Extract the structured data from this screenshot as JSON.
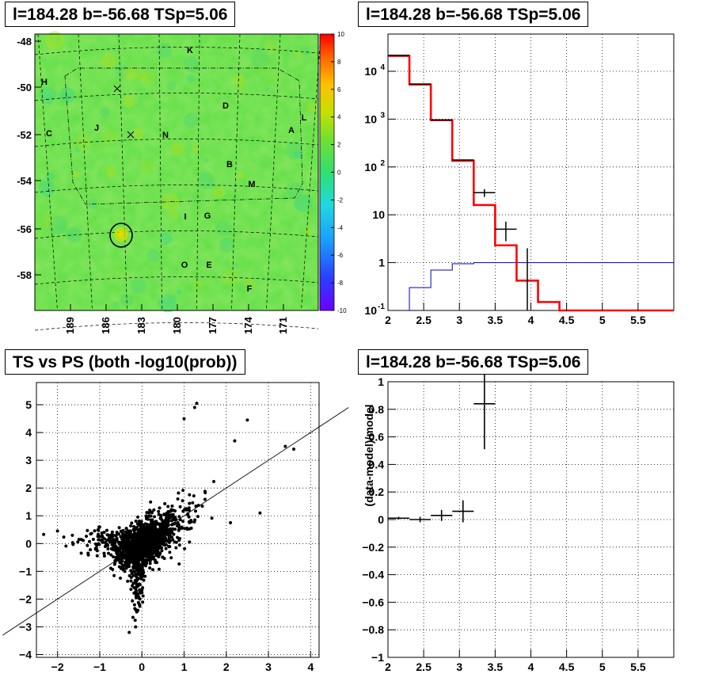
{
  "panels": {
    "tl_title": "l=184.28 b=-56.68 TSp=5.06",
    "tr_title": "l=184.28 b=-56.68 TSp=5.06",
    "bl_title": "TS vs PS (both -log10(prob))",
    "br_title": "l=184.28 b=-56.68 TSp=5.06"
  },
  "chart_data": [
    {
      "id": "ts_map",
      "type": "heatmap",
      "title": "l=184.28 b=-56.68 TSp=5.06",
      "x_ticks": [
        "189",
        "186",
        "183",
        "180",
        "177",
        "174",
        "171"
      ],
      "y_ticks": [
        "-48",
        "-50",
        "-52",
        "-54",
        "-56",
        "-58"
      ],
      "color_scale": {
        "min": -10,
        "max": 10,
        "ticks": [
          "10",
          "8",
          "6",
          "4",
          "2",
          "0",
          "-2",
          "-4",
          "-6",
          "-8",
          "-10"
        ]
      },
      "source_labels": [
        "K",
        "H",
        "D",
        "C",
        "J",
        "N",
        "A",
        "L",
        "B",
        "M",
        "I",
        "G",
        "O",
        "E",
        "F"
      ],
      "markers": [
        "x",
        "x"
      ],
      "background_color": "#66e04a",
      "circle_color": "#000000"
    },
    {
      "id": "spectrum",
      "type": "line",
      "title": "l=184.28 b=-56.68 TSp=5.06",
      "x_ticks": [
        "2",
        "2.5",
        "3",
        "3.5",
        "4",
        "4.5",
        "5",
        "5.5"
      ],
      "xlim": [
        2,
        6
      ],
      "y_scale": "log",
      "ylim": [
        0.1,
        60000
      ],
      "y_ticks": [
        {
          "v": 10000,
          "label": "10",
          "sup": "4"
        },
        {
          "v": 1000,
          "label": "10",
          "sup": "3"
        },
        {
          "v": 100,
          "label": "10",
          "sup": "2"
        },
        {
          "v": 10,
          "label": "10",
          "sup": ""
        },
        {
          "v": 1,
          "label": "1",
          "sup": ""
        },
        {
          "v": 0.1,
          "label": "10",
          "sup": "-1"
        }
      ],
      "model_edges": [
        2.0,
        2.3,
        2.6,
        2.9,
        3.2,
        3.5,
        3.8,
        4.1,
        4.4,
        6.0
      ],
      "model_values": [
        21000,
        5300,
        950,
        135,
        16,
        2.3,
        0.42,
        0.15,
        0.1
      ],
      "data_points": [
        {
          "x": 2.15,
          "y": 21500,
          "xerr": 0.15,
          "yerr": 0.0
        },
        {
          "x": 2.45,
          "y": 5400,
          "xerr": 0.15,
          "yerr": 0.0
        },
        {
          "x": 2.75,
          "y": 960,
          "xerr": 0.15,
          "yerr": 0.0
        },
        {
          "x": 3.05,
          "y": 140,
          "xerr": 0.15,
          "yerr": 0.0
        },
        {
          "x": 3.35,
          "y": 29,
          "xerr": 0.15,
          "yerr": 5.4
        },
        {
          "x": 3.65,
          "y": 5,
          "xerr": 0.15,
          "yerr": 2.2
        },
        {
          "x": 3.95,
          "y": 1,
          "xerr": 0.0,
          "yerr": 1.0
        }
      ],
      "blue_edges": [
        2.3,
        2.6,
        2.9,
        3.2,
        6.0
      ],
      "blue_values": [
        0.3,
        0.7,
        0.95,
        1.0
      ],
      "colors": {
        "model": "#ff0000",
        "data": "#000000",
        "blue": "#0000cc"
      }
    },
    {
      "id": "ts_vs_ps",
      "type": "scatter",
      "title": "TS vs PS (both -log10(prob))",
      "x_ticks": [
        "-2",
        "-1",
        "0",
        "1",
        "2",
        "3",
        "4"
      ],
      "y_ticks": [
        "5",
        "4",
        "3",
        "2",
        "1",
        "0",
        "-1",
        "-2",
        "-3",
        "-4"
      ],
      "xlim": [
        -2.5,
        4.2
      ],
      "ylim": [
        -4.1,
        5.8
      ],
      "trend_line": {
        "slope": 1.0,
        "intercept": 0.0
      },
      "outliers": [
        {
          "x": 1.25,
          "y": 4.9
        },
        {
          "x": 1.3,
          "y": 5.05
        },
        {
          "x": 2.5,
          "y": 4.45
        },
        {
          "x": 3.6,
          "y": 3.4
        },
        {
          "x": 3.4,
          "y": 3.5
        },
        {
          "x": 2.2,
          "y": 3.7
        },
        {
          "x": 1.0,
          "y": 4.5
        },
        {
          "x": -0.3,
          "y": -3.2
        },
        {
          "x": -0.15,
          "y": -3.0
        },
        {
          "x": -2.0,
          "y": 0.45
        },
        {
          "x": 2.8,
          "y": 1.1
        },
        {
          "x": 2.1,
          "y": 0.75
        }
      ],
      "point_color": "#000000"
    },
    {
      "id": "residuals",
      "type": "scatter",
      "title": "l=184.28 b=-56.68 TSp=5.06",
      "ylabel": "(data-model)/model",
      "x_ticks": [
        "2",
        "2.5",
        "3",
        "3.5",
        "4",
        "4.5",
        "5",
        "5.5"
      ],
      "y_ticks": [
        "1",
        "0.8",
        "0.6",
        "0.4",
        "0.2",
        "0",
        "-0.2",
        "-0.4",
        "-0.6",
        "-0.8",
        "-1"
      ],
      "xlim": [
        2,
        6
      ],
      "ylim": [
        -1,
        1
      ],
      "points": [
        {
          "x": 2.15,
          "y": 0.01,
          "xerr": 0.15,
          "yerr": 0.01
        },
        {
          "x": 2.45,
          "y": 0.0,
          "xerr": 0.15,
          "yerr": 0.02
        },
        {
          "x": 2.75,
          "y": 0.03,
          "xerr": 0.15,
          "yerr": 0.04
        },
        {
          "x": 3.05,
          "y": 0.06,
          "xerr": 0.15,
          "yerr": 0.08
        },
        {
          "x": 3.35,
          "y": 0.84,
          "xerr": 0.15,
          "yerr": 0.33
        }
      ]
    }
  ]
}
